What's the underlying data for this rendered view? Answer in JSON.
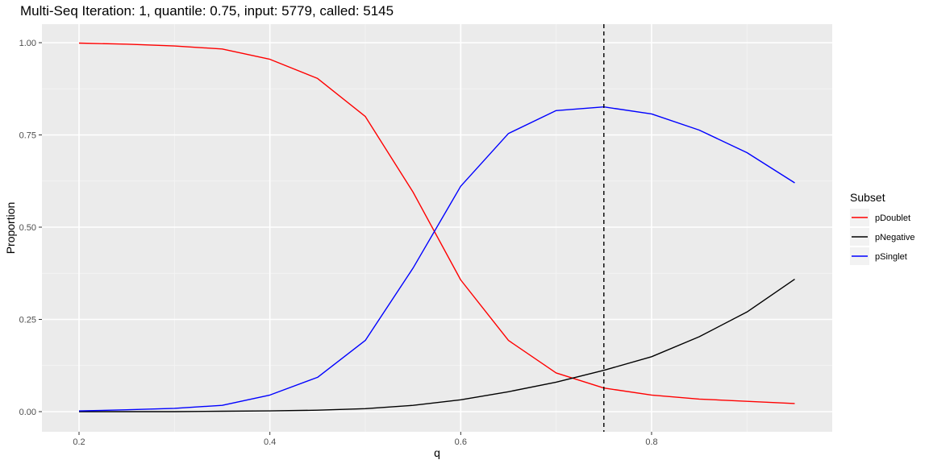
{
  "chart_data": {
    "type": "line",
    "title": "Multi-Seq Iteration: 1, quantile: 0.75, input: 5779, called: 5145",
    "xlabel": "q",
    "ylabel": "Proportion",
    "xlim": [
      0.2,
      0.95
    ],
    "ylim": [
      0,
      1
    ],
    "x_ticks": [
      0.2,
      0.4,
      0.6,
      0.8
    ],
    "x_tick_labels": [
      "0.2",
      "0.4",
      "0.6",
      "0.8"
    ],
    "y_ticks": [
      0,
      0.25,
      0.5,
      0.75,
      1
    ],
    "y_tick_labels": [
      "0.00",
      "0.25",
      "0.50",
      "0.75",
      "1.00"
    ],
    "grid": true,
    "legend_position": "right",
    "legend_title": "Subset",
    "vline": {
      "x": 0.75,
      "style": "dashed",
      "color": "#000000"
    },
    "x": [
      0.2,
      0.25,
      0.3,
      0.35,
      0.4,
      0.45,
      0.5,
      0.55,
      0.6,
      0.65,
      0.7,
      0.75,
      0.8,
      0.85,
      0.9,
      0.95
    ],
    "series": [
      {
        "name": "pDoublet",
        "color": "#ff0000",
        "values": [
          0.999,
          0.996,
          0.991,
          0.983,
          0.955,
          0.903,
          0.8,
          0.595,
          0.357,
          0.193,
          0.105,
          0.064,
          0.045,
          0.034,
          0.028,
          0.022
        ]
      },
      {
        "name": "pNegative",
        "color": "#000000",
        "values": [
          0.0,
          0.0,
          0.0,
          0.001,
          0.002,
          0.004,
          0.008,
          0.017,
          0.032,
          0.054,
          0.08,
          0.112,
          0.149,
          0.203,
          0.27,
          0.359
        ]
      },
      {
        "name": "pSinglet",
        "color": "#0000ff",
        "values": [
          0.002,
          0.005,
          0.009,
          0.017,
          0.045,
          0.093,
          0.193,
          0.389,
          0.611,
          0.754,
          0.816,
          0.826,
          0.807,
          0.763,
          0.702,
          0.62
        ]
      }
    ]
  }
}
